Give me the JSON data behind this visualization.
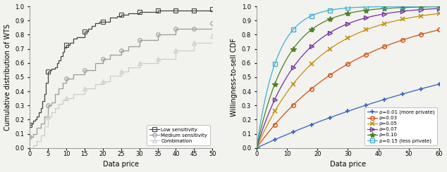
{
  "left": {
    "ylabel": "Cumulative distribution of WTS",
    "xlabel": "Data price",
    "xlim": [
      0,
      50
    ],
    "ylim": [
      0.0,
      1.0
    ],
    "xticks": [
      0,
      5,
      10,
      15,
      20,
      25,
      30,
      35,
      40,
      45,
      50
    ],
    "yticks": [
      0.0,
      0.1,
      0.2,
      0.3,
      0.4,
      0.5,
      0.6,
      0.7,
      0.8,
      0.9,
      1.0
    ],
    "series": [
      {
        "label": "Low sensitivity",
        "color": "#444444",
        "marker": "s",
        "markersize": 4,
        "marker_x": [
          0,
          5,
          10,
          15,
          20,
          25,
          30,
          35,
          40,
          45,
          50
        ],
        "x": [
          0,
          0.5,
          1,
          1.5,
          2,
          2.5,
          3,
          3.5,
          4,
          4.5,
          5,
          5.5,
          6,
          6.5,
          7,
          7.5,
          8,
          8.5,
          9,
          9.5,
          10,
          11,
          12,
          13,
          14,
          15,
          16,
          17,
          18,
          19,
          20,
          22,
          24,
          25,
          27,
          30,
          35,
          40,
          45,
          50
        ],
        "y": [
          0.16,
          0.17,
          0.19,
          0.2,
          0.22,
          0.25,
          0.28,
          0.33,
          0.38,
          0.46,
          0.54,
          0.55,
          0.56,
          0.56,
          0.57,
          0.6,
          0.62,
          0.65,
          0.68,
          0.71,
          0.73,
          0.74,
          0.77,
          0.78,
          0.78,
          0.82,
          0.84,
          0.86,
          0.88,
          0.89,
          0.89,
          0.92,
          0.93,
          0.94,
          0.95,
          0.96,
          0.97,
          0.97,
          0.97,
          0.98
        ]
      },
      {
        "label": "Medium sensitivity",
        "color": "#999999",
        "marker": "o",
        "markersize": 4,
        "marker_x": [
          0,
          5,
          10,
          15,
          20,
          25,
          30,
          35,
          40,
          45,
          50
        ],
        "x": [
          0,
          1,
          2,
          3,
          4,
          5,
          6,
          7,
          8,
          9,
          10,
          12,
          15,
          18,
          20,
          22,
          25,
          27,
          30,
          35,
          40,
          45,
          50
        ],
        "y": [
          0.08,
          0.1,
          0.14,
          0.17,
          0.22,
          0.3,
          0.32,
          0.38,
          0.42,
          0.46,
          0.49,
          0.52,
          0.55,
          0.6,
          0.63,
          0.66,
          0.69,
          0.72,
          0.76,
          0.8,
          0.84,
          0.84,
          0.88
        ]
      },
      {
        "label": "Combination",
        "color": "#cccccc",
        "marker": "^",
        "markersize": 4,
        "marker_x": [
          0,
          5,
          10,
          15,
          20,
          25,
          30,
          35,
          40,
          45,
          50
        ],
        "x": [
          0,
          1,
          2,
          3,
          4,
          5,
          6,
          7,
          8,
          9,
          10,
          12,
          15,
          18,
          20,
          22,
          25,
          27,
          30,
          35,
          40,
          45,
          50
        ],
        "y": [
          0.0,
          0.02,
          0.05,
          0.09,
          0.15,
          0.22,
          0.25,
          0.28,
          0.31,
          0.34,
          0.35,
          0.38,
          0.42,
          0.45,
          0.47,
          0.51,
          0.54,
          0.57,
          0.6,
          0.63,
          0.69,
          0.74,
          0.79
        ]
      }
    ]
  },
  "right": {
    "ylabel": "Willingness-to-sell CDF",
    "xlabel": "Data price",
    "xlim": [
      0,
      60
    ],
    "ylim": [
      0.0,
      1.0
    ],
    "xticks": [
      0,
      10,
      20,
      30,
      40,
      50,
      60
    ],
    "yticks": [
      0.0,
      0.1,
      0.2,
      0.3,
      0.4,
      0.5,
      0.6,
      0.7,
      0.8,
      0.9,
      1.0
    ],
    "marker_x": [
      0,
      6,
      12,
      18,
      24,
      30,
      36,
      42,
      48,
      54,
      60
    ],
    "series": [
      {
        "label": "ρ=0.01 (more private)",
        "color": "#3060c0",
        "marker": "+",
        "markersize": 5,
        "markeredgewidth": 1.2,
        "rho": 0.01
      },
      {
        "label": "ρ=0.03",
        "color": "#d05010",
        "marker": "o",
        "markersize": 4,
        "markeredgewidth": 1.0,
        "rho": 0.03
      },
      {
        "label": "ρ=0.05",
        "color": "#c09010",
        "marker": "x",
        "markersize": 5,
        "markeredgewidth": 1.2,
        "rho": 0.05
      },
      {
        "label": "ρ=0.07",
        "color": "#7030a0",
        "marker": ">",
        "markersize": 4,
        "markeredgewidth": 1.0,
        "rho": 0.07
      },
      {
        "label": "ρ=0.10",
        "color": "#508020",
        "marker": "*",
        "markersize": 6,
        "markeredgewidth": 1.0,
        "rho": 0.1
      },
      {
        "label": "ρ=0.15 (less private)",
        "color": "#40b0d0",
        "marker": "s",
        "markersize": 4,
        "markeredgewidth": 1.0,
        "rho": 0.15
      }
    ]
  },
  "fig_bg": "#f2f2ee"
}
